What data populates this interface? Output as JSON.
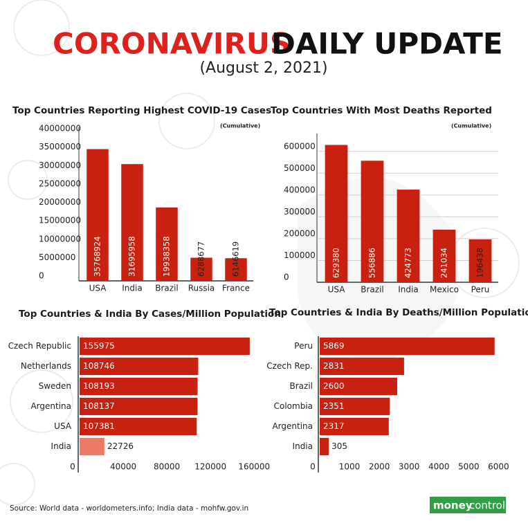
{
  "header": {
    "title": [
      "CORONAVIRUS",
      "DAILY UPDATE"
    ],
    "date": "(August 2, 2021)"
  },
  "chart_data": [
    {
      "type": "bar",
      "title": "Top Countries Reporting Highest COVID-19 Cases",
      "subtitle": "(Cumulative)",
      "categories": [
        "USA",
        "India",
        "Brazil",
        "Russia",
        "France"
      ],
      "values": [
        35768924,
        31695958,
        19938358,
        6288677,
        6146619
      ],
      "color": "#c8210f",
      "ylim": [
        0,
        40000000
      ],
      "yticks": [
        0,
        5000000,
        10000000,
        15000000,
        20000000,
        25000000,
        30000000,
        35000000,
        40000000
      ],
      "grid": false
    },
    {
      "type": "bar",
      "title": "Top Countries With Most Deaths Reported",
      "subtitle": "(Cumulative)",
      "categories": [
        "USA",
        "Brazil",
        "India",
        "Mexico",
        "Peru"
      ],
      "values": [
        629380,
        556886,
        424773,
        241034,
        196438
      ],
      "color": "#c8210f",
      "ylim": [
        0,
        650000
      ],
      "yticks": [
        0,
        100000,
        200000,
        300000,
        400000,
        500000,
        600000
      ],
      "grid": true
    },
    {
      "type": "barh",
      "title": "Top Countries & India By Cases/Million Population",
      "categories": [
        "Czech Republic",
        "Netherlands",
        "Sweden",
        "Argentina",
        "USA",
        "India"
      ],
      "values": [
        155975,
        108746,
        108193,
        108137,
        107381,
        22726
      ],
      "colors": [
        "#c8210f",
        "#c8210f",
        "#c8210f",
        "#c8210f",
        "#c8210f",
        "#ee7a64"
      ],
      "xlim": [
        0,
        170000
      ],
      "xticks": [
        0,
        40000,
        80000,
        120000,
        160000
      ],
      "grid": false
    },
    {
      "type": "barh",
      "title": "Top Countries & India By Deaths/Million Population",
      "categories": [
        "Peru",
        "Czech Rep.",
        "Brazil",
        "Colombia",
        "Argentina",
        "India"
      ],
      "values": [
        5869,
        2831,
        2600,
        2351,
        2317,
        305
      ],
      "colors": [
        "#c8210f",
        "#c8210f",
        "#c8210f",
        "#c8210f",
        "#c8210f",
        "#c8210f"
      ],
      "xlim": [
        0,
        6200
      ],
      "xticks": [
        0,
        1000,
        2000,
        3000,
        4000,
        5000,
        6000
      ],
      "grid": false
    }
  ],
  "source": "Source: World data - worldometers.info; India data - mohfw.gov.in",
  "logo": [
    "money",
    "control"
  ]
}
